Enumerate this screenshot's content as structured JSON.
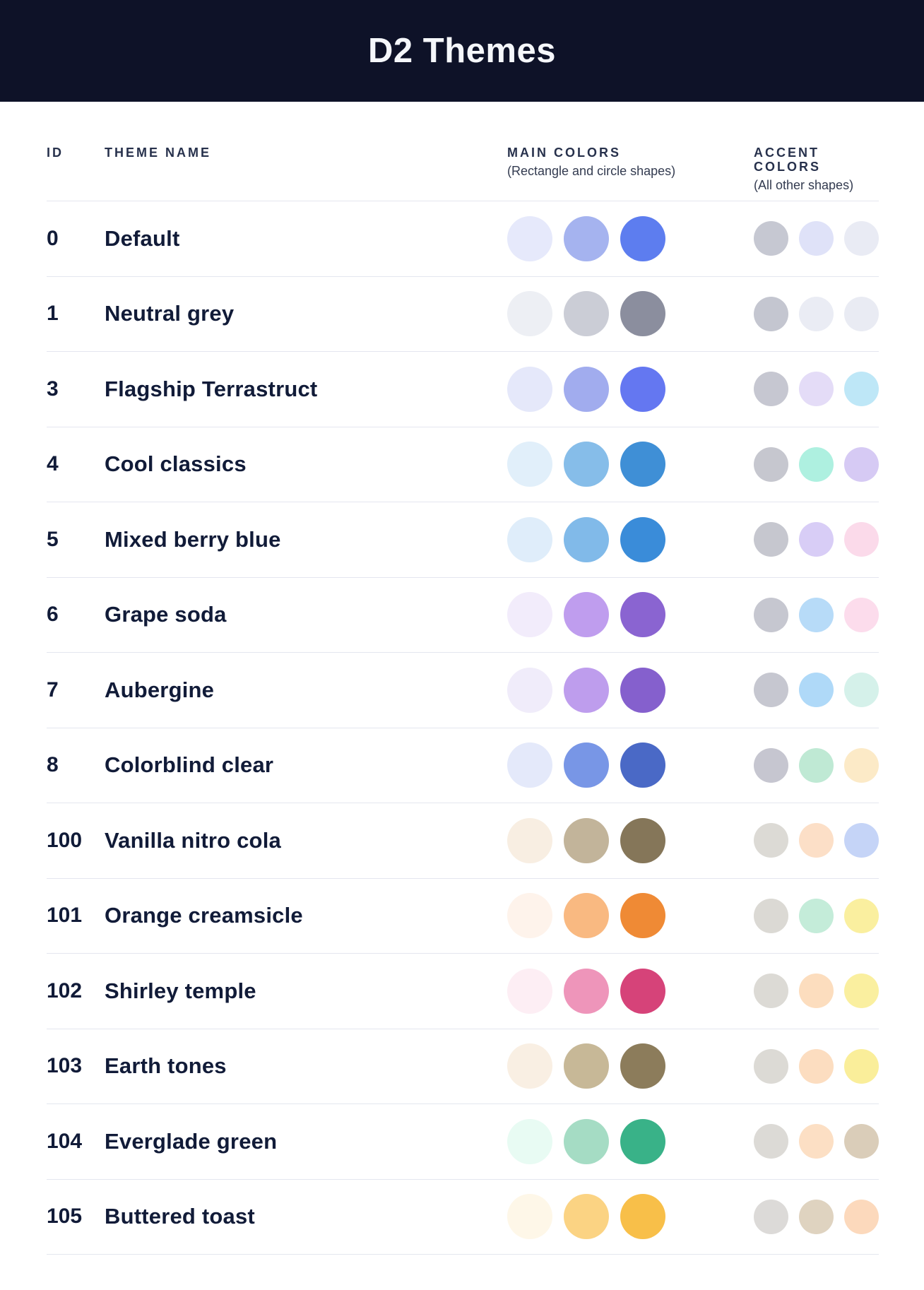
{
  "header": {
    "title": "D2 Themes"
  },
  "colors": {
    "header_bg": "#0E1228",
    "title_text": "#F5F7FB",
    "body_text": "#111B38",
    "divider": "#E4E6EF"
  },
  "table": {
    "columns": {
      "id_label": "ID",
      "name_label": "THEME NAME",
      "main_label": "MAIN COLORS",
      "main_sublabel": "(Rectangle and circle shapes)",
      "accent_label": "ACCENT COLORS",
      "accent_sublabel": "(All other shapes)"
    },
    "rows": [
      {
        "id": "0",
        "name": "Default",
        "main_colors": [
          "#E6E9FB",
          "#A5B3EF",
          "#5D7DEF"
        ],
        "accent_colors": [
          "#C6C8D2",
          "#DFE2F8",
          "#E9EBF4"
        ]
      },
      {
        "id": "1",
        "name": "Neutral grey",
        "main_colors": [
          "#EDEFF4",
          "#CBCDD6",
          "#8B8E9E"
        ],
        "accent_colors": [
          "#C4C6D0",
          "#EAECF4",
          "#E9EBF3"
        ]
      },
      {
        "id": "3",
        "name": "Flagship Terrastruct",
        "main_colors": [
          "#E5E8FA",
          "#A1ACEE",
          "#6477F1"
        ],
        "accent_colors": [
          "#C6C7D1",
          "#E4DCF7",
          "#BEE7F7"
        ]
      },
      {
        "id": "4",
        "name": "Cool classics",
        "main_colors": [
          "#E1EFFA",
          "#86BDE9",
          "#3F8FD6"
        ],
        "accent_colors": [
          "#C6C7CF",
          "#AEF0E0",
          "#D6CAF4"
        ]
      },
      {
        "id": "5",
        "name": "Mixed berry blue",
        "main_colors": [
          "#DFEDFA",
          "#81BAE9",
          "#3A8CD9"
        ],
        "accent_colors": [
          "#C6C7CF",
          "#D8CDF6",
          "#FBDAEA"
        ]
      },
      {
        "id": "6",
        "name": "Grape soda",
        "main_colors": [
          "#F2ECFB",
          "#BF9DEE",
          "#8A64D1"
        ],
        "accent_colors": [
          "#C6C7D0",
          "#B7DBF8",
          "#FCDCEC"
        ]
      },
      {
        "id": "7",
        "name": "Aubergine",
        "main_colors": [
          "#F0ECFA",
          "#BE9DED",
          "#8560CD"
        ],
        "accent_colors": [
          "#C6C7D0",
          "#AFD9F8",
          "#D5F1EA"
        ]
      },
      {
        "id": "8",
        "name": "Colorblind clear",
        "main_colors": [
          "#E4E9FA",
          "#7896E6",
          "#4A69C6"
        ],
        "accent_colors": [
          "#C6C6D0",
          "#BFE9D4",
          "#FCEAC7"
        ]
      },
      {
        "id": "100",
        "name": "Vanilla nitro cola",
        "main_colors": [
          "#F8EEE2",
          "#C2B49A",
          "#857659"
        ],
        "accent_colors": [
          "#DCDAD5",
          "#FCDFC7",
          "#C5D4F7"
        ]
      },
      {
        "id": "101",
        "name": "Orange creamsicle",
        "main_colors": [
          "#FEF3EB",
          "#F9B981",
          "#EF8A35"
        ],
        "accent_colors": [
          "#DBD9D4",
          "#C4ECD9",
          "#FAEF9F"
        ]
      },
      {
        "id": "102",
        "name": "Shirley temple",
        "main_colors": [
          "#FDEEF4",
          "#EE95BA",
          "#D64379"
        ],
        "accent_colors": [
          "#DCDAD5",
          "#FCDDBE",
          "#FAEF9F"
        ]
      },
      {
        "id": "103",
        "name": "Earth tones",
        "main_colors": [
          "#F9EFE3",
          "#C7B897",
          "#8C7C5B"
        ],
        "accent_colors": [
          "#DCDAD5",
          "#FCDDC0",
          "#FAEE9A"
        ]
      },
      {
        "id": "104",
        "name": "Everglade green",
        "main_colors": [
          "#E8FBF3",
          "#A5DCC4",
          "#39B288"
        ],
        "accent_colors": [
          "#DCDAD6",
          "#FCDFC4",
          "#DACDB9"
        ]
      },
      {
        "id": "105",
        "name": "Buttered toast",
        "main_colors": [
          "#FEF7E8",
          "#FBD383",
          "#F8BF49"
        ],
        "accent_colors": [
          "#DCDAD8",
          "#DFD3C0",
          "#FCD9BC"
        ]
      }
    ]
  }
}
